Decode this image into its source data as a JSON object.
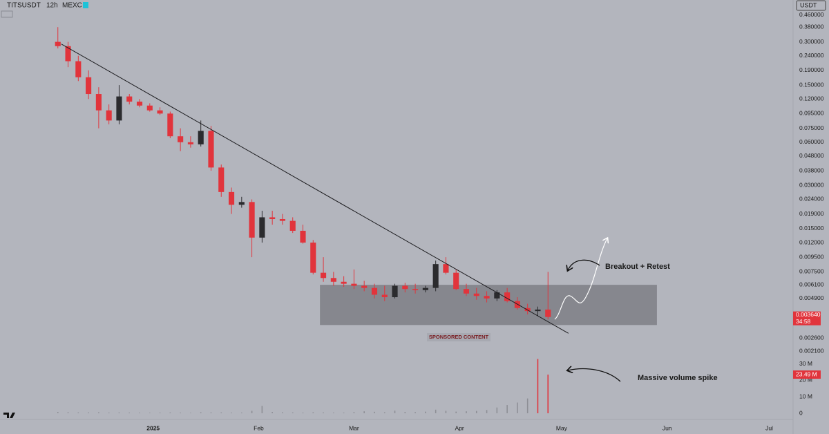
{
  "header": {
    "symbol": "TITSUSDT",
    "interval": "12h",
    "exchange": "MEXC",
    "currency": "USDT"
  },
  "chart_data": [
    {
      "type": "candlestick",
      "log_scale": true,
      "x": [
        -28,
        -25,
        -22,
        -19,
        -16,
        -13,
        -10,
        -7,
        -4,
        -1,
        2,
        5,
        8,
        11,
        14,
        17,
        20,
        23,
        26,
        29,
        32,
        35,
        38,
        41,
        44,
        47,
        50,
        53,
        56,
        59,
        62,
        65,
        68,
        71,
        74,
        77,
        80,
        83,
        86,
        89,
        92,
        95,
        98,
        101,
        104,
        107,
        110,
        113,
        116
      ],
      "open": [
        0.3,
        0.28,
        0.22,
        0.17,
        0.13,
        0.1,
        0.085,
        0.125,
        0.115,
        0.108,
        0.1,
        0.095,
        0.066,
        0.06,
        0.058,
        0.072,
        0.04,
        0.027,
        0.022,
        0.023,
        0.013,
        0.018,
        0.0175,
        0.017,
        0.0145,
        0.012,
        0.0074,
        0.0068,
        0.0064,
        0.0062,
        0.006,
        0.0058,
        0.0052,
        0.005,
        0.006,
        0.0057,
        0.0056,
        0.0058,
        0.0085,
        0.0074,
        0.0057,
        0.0053,
        0.0051,
        0.0049,
        0.0054,
        0.0047,
        0.0042,
        0.004,
        0.0041
      ],
      "high": [
        0.38,
        0.3,
        0.24,
        0.19,
        0.145,
        0.11,
        0.15,
        0.13,
        0.12,
        0.112,
        0.105,
        0.098,
        0.075,
        0.066,
        0.085,
        0.078,
        0.042,
        0.029,
        0.025,
        0.024,
        0.02,
        0.02,
        0.019,
        0.018,
        0.016,
        0.0125,
        0.0095,
        0.0075,
        0.007,
        0.0078,
        0.0065,
        0.0062,
        0.006,
        0.0062,
        0.0063,
        0.0062,
        0.006,
        0.009,
        0.0095,
        0.0078,
        0.0062,
        0.0058,
        0.0055,
        0.0056,
        0.0058,
        0.005,
        0.0045,
        0.0043,
        0.0075
      ],
      "low": [
        0.27,
        0.2,
        0.16,
        0.12,
        0.075,
        0.08,
        0.08,
        0.11,
        0.105,
        0.098,
        0.093,
        0.064,
        0.052,
        0.055,
        0.056,
        0.038,
        0.025,
        0.019,
        0.021,
        0.0095,
        0.012,
        0.016,
        0.016,
        0.014,
        0.0118,
        0.0072,
        0.0064,
        0.006,
        0.0059,
        0.0057,
        0.0055,
        0.0049,
        0.0047,
        0.0049,
        0.0054,
        0.0053,
        0.0054,
        0.0055,
        0.0072,
        0.0056,
        0.0051,
        0.0048,
        0.0046,
        0.0047,
        0.0046,
        0.0041,
        0.0038,
        0.0037,
        0.0035
      ],
      "close": [
        0.28,
        0.22,
        0.17,
        0.13,
        0.1,
        0.085,
        0.125,
        0.115,
        0.108,
        0.1,
        0.095,
        0.066,
        0.06,
        0.058,
        0.072,
        0.04,
        0.027,
        0.022,
        0.023,
        0.013,
        0.018,
        0.0175,
        0.017,
        0.0145,
        0.012,
        0.0074,
        0.0068,
        0.0064,
        0.0062,
        0.006,
        0.0058,
        0.0052,
        0.005,
        0.006,
        0.0057,
        0.0056,
        0.0058,
        0.0085,
        0.0074,
        0.0057,
        0.0053,
        0.0051,
        0.0049,
        0.0054,
        0.0047,
        0.0042,
        0.004,
        0.0041,
        0.00364
      ],
      "up_color": "#2b2b2e",
      "down_color": "#e1343c",
      "xlim": [
        -45,
        188
      ],
      "xticks": [
        {
          "value": 0,
          "label": "2025"
        },
        {
          "value": 31,
          "label": "Feb"
        },
        {
          "value": 59,
          "label": "Mar"
        },
        {
          "value": 90,
          "label": "Apr"
        },
        {
          "value": 120,
          "label": "May"
        },
        {
          "value": 151,
          "label": "Jun"
        },
        {
          "value": 181,
          "label": "Jul"
        }
      ],
      "ylim": [
        0.00195,
        0.587
      ],
      "yticks": [
        {
          "value": 0.46,
          "label": "0.460000"
        },
        {
          "value": 0.38,
          "label": "0.380000"
        },
        {
          "value": 0.3,
          "label": "0.300000"
        },
        {
          "value": 0.24,
          "label": "0.240000"
        },
        {
          "value": 0.19,
          "label": "0.190000"
        },
        {
          "value": 0.15,
          "label": "0.150000"
        },
        {
          "value": 0.12,
          "label": "0.120000"
        },
        {
          "value": 0.095,
          "label": "0.095000"
        },
        {
          "value": 0.075,
          "label": "0.075000"
        },
        {
          "value": 0.06,
          "label": "0.060000"
        },
        {
          "value": 0.048,
          "label": "0.048000"
        },
        {
          "value": 0.038,
          "label": "0.038000"
        },
        {
          "value": 0.03,
          "label": "0.030000"
        },
        {
          "value": 0.024,
          "label": "0.024000"
        },
        {
          "value": 0.019,
          "label": "0.019000"
        },
        {
          "value": 0.015,
          "label": "0.015000"
        },
        {
          "value": 0.012,
          "label": "0.012000"
        },
        {
          "value": 0.0095,
          "label": "0.009500"
        },
        {
          "value": 0.0075,
          "label": "0.007500"
        },
        {
          "value": 0.0061,
          "label": "0.006100"
        },
        {
          "value": 0.0049,
          "label": "0.004900"
        },
        {
          "value": 0.0026,
          "label": "0.002600"
        },
        {
          "value": 0.0021,
          "label": "0.002100"
        }
      ],
      "last_price": {
        "value": 0.00364,
        "label": "0.003640"
      },
      "countdown": "34:58",
      "trendline": {
        "x": [
          -27,
          122
        ],
        "y": [
          0.29,
          0.0028
        ]
      },
      "zone": {
        "x": [
          49,
          148
        ],
        "y": [
          0.0032,
          0.0061
        ]
      },
      "annotations": [
        "Breakout + Retest",
        "SPONSORED CONTENT"
      ]
    },
    {
      "type": "bar",
      "color": "#8e8f96",
      "spike_color": "#e1343c",
      "x": [
        -28,
        -25,
        -22,
        -19,
        -16,
        -13,
        -10,
        -7,
        -4,
        -1,
        2,
        5,
        8,
        11,
        14,
        17,
        20,
        23,
        26,
        29,
        32,
        35,
        38,
        41,
        44,
        47,
        50,
        53,
        56,
        59,
        62,
        65,
        68,
        71,
        74,
        77,
        80,
        83,
        86,
        89,
        92,
        95,
        98,
        101,
        104,
        107,
        110,
        113,
        116
      ],
      "values": [
        0.8,
        0.6,
        0.5,
        0.5,
        0.6,
        0.4,
        0.5,
        0.4,
        0.4,
        0.3,
        0.4,
        0.5,
        0.4,
        0.3,
        0.6,
        0.5,
        0.5,
        0.4,
        0.4,
        1.5,
        4.5,
        0.8,
        0.6,
        0.5,
        0.4,
        0.6,
        0.5,
        0.4,
        0.4,
        0.7,
        1.2,
        0.9,
        0.6,
        1.6,
        0.8,
        0.7,
        1.0,
        2.2,
        1.5,
        1.0,
        1.2,
        1.4,
        2.0,
        3.5,
        5.0,
        6.5,
        9.0,
        33,
        23.49
      ],
      "xlim": [
        -45,
        188
      ],
      "ylim": [
        0,
        34
      ],
      "yticks": [
        {
          "value": 30,
          "label": "30 M"
        },
        {
          "value": 20,
          "label": "20 M"
        },
        {
          "value": 10,
          "label": "10 M"
        },
        0
      ],
      "last_value": {
        "value": 23.49,
        "label": "23.49 M"
      },
      "annotations": [
        "Massive volume spike"
      ]
    }
  ]
}
